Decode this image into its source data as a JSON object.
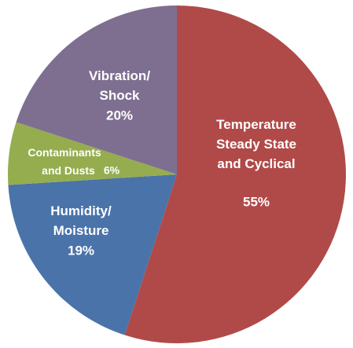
{
  "chart_data": {
    "type": "pie",
    "categories": [
      "Temperature Steady State and Cyclical",
      "Humidity/ Moisture",
      "Contaminants and Dusts",
      "Vibration/ Shock"
    ],
    "values": [
      55,
      19,
      6,
      20
    ],
    "value_labels": [
      "55%",
      "19%",
      "6%",
      "20%"
    ],
    "colors": [
      "#b04a48",
      "#4a73aa",
      "#95ad4f",
      "#7e6f91"
    ]
  }
}
